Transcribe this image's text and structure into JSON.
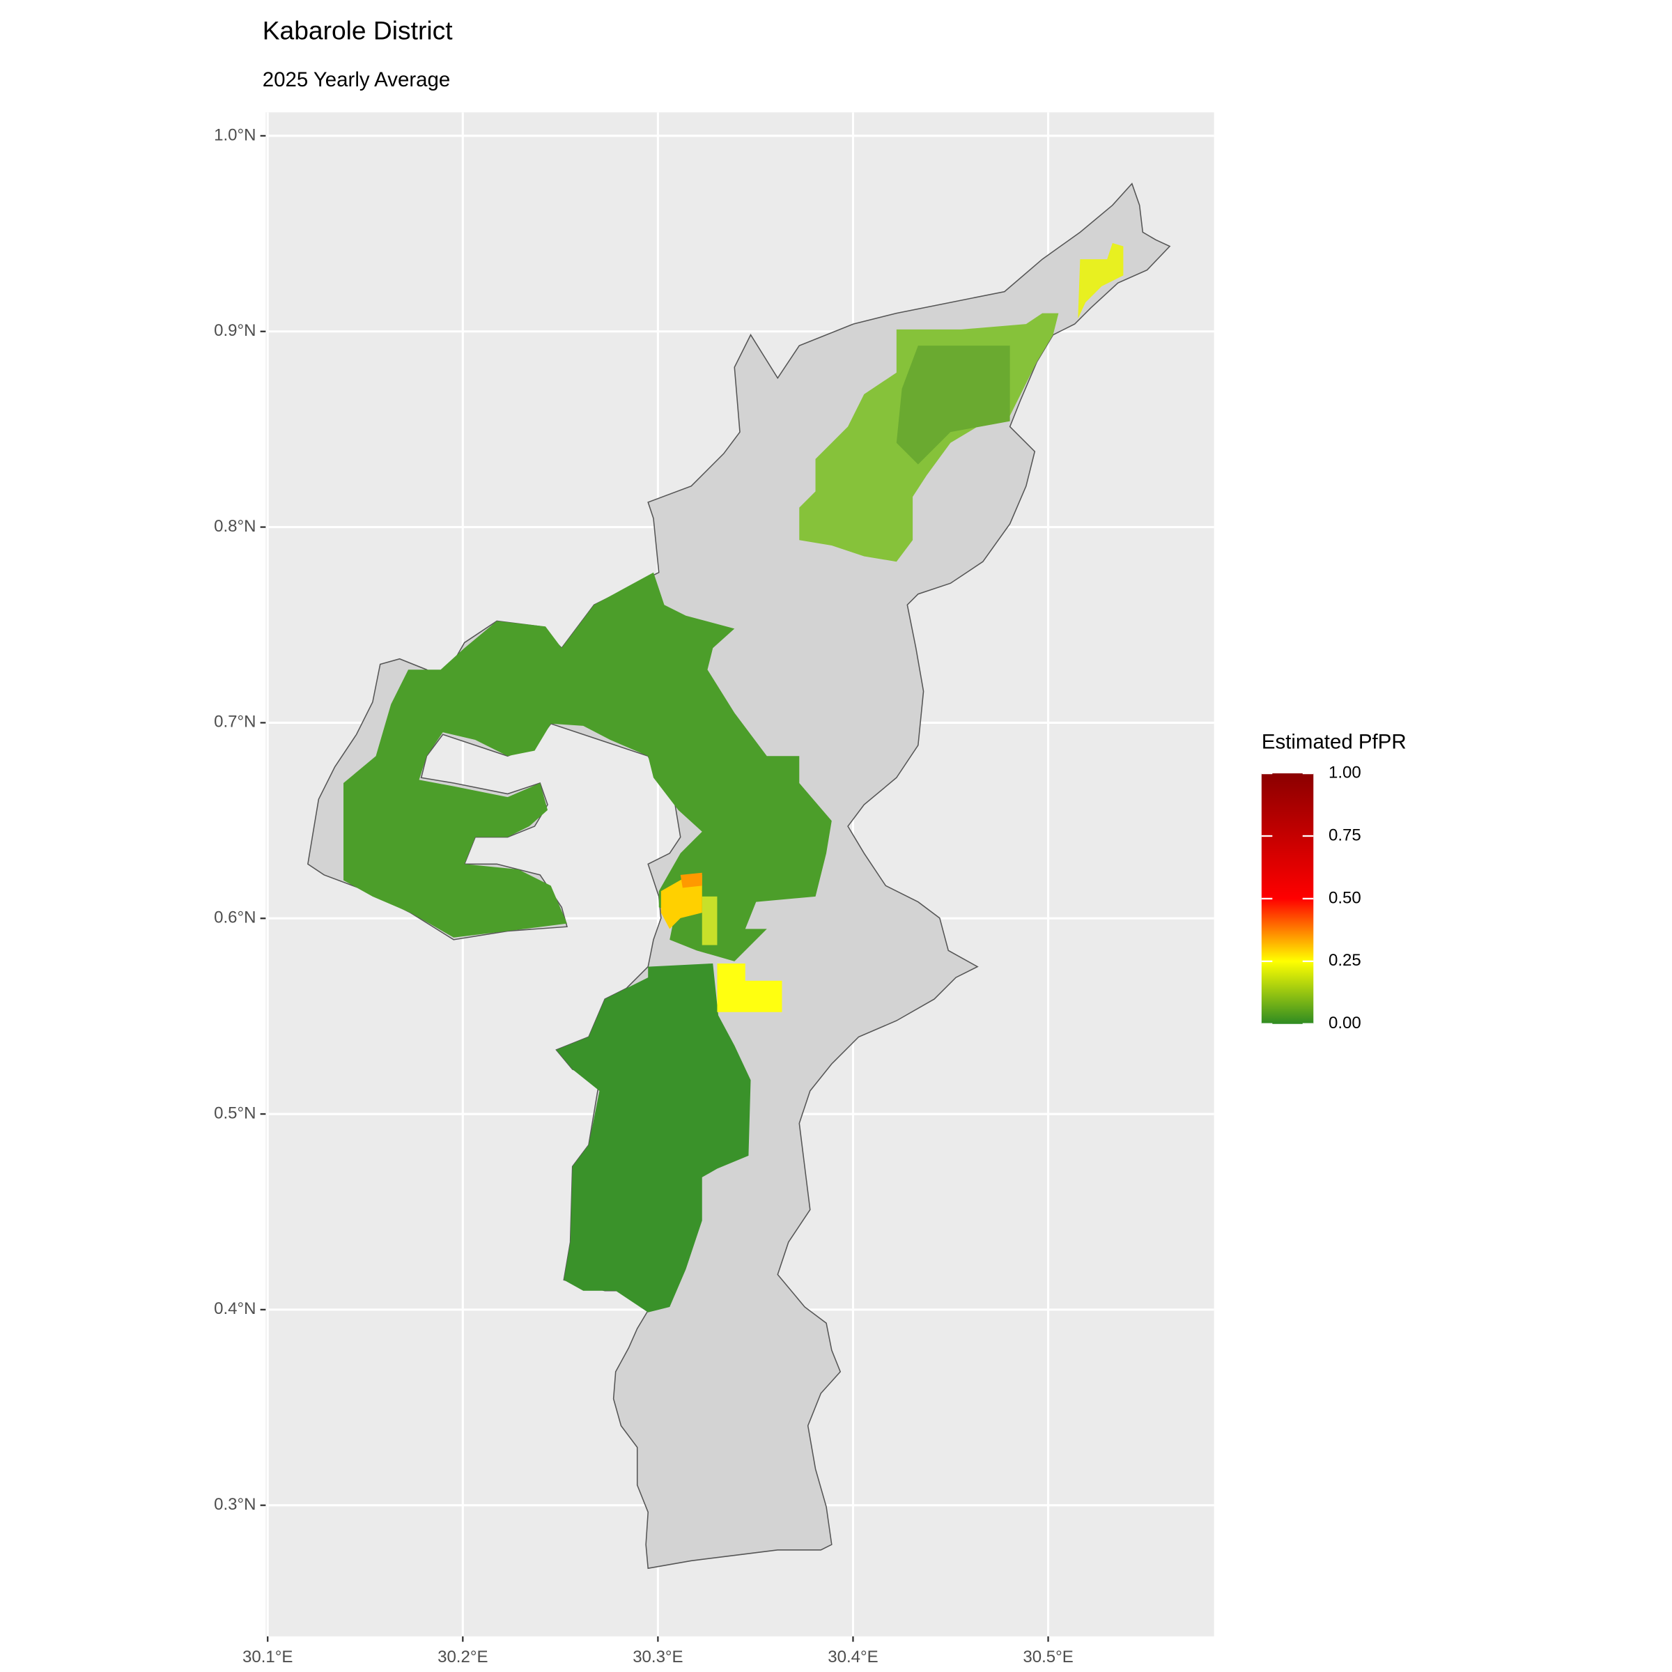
{
  "chart_data": {
    "type": "map",
    "title": "Kabarole District",
    "subtitle": "2025 Yearly Average",
    "xlim": [
      30.099,
      30.585
    ],
    "ylim": [
      0.233,
      1.012
    ],
    "xticks": [
      {
        "value": 30.1,
        "label": "30.1°E"
      },
      {
        "value": 30.2,
        "label": "30.2°E"
      },
      {
        "value": 30.3,
        "label": "30.3°E"
      },
      {
        "value": 30.4,
        "label": "30.4°E"
      },
      {
        "value": 30.5,
        "label": "30.5°E"
      }
    ],
    "yticks": [
      {
        "value": 0.3,
        "label": "0.3°N"
      },
      {
        "value": 0.4,
        "label": "0.4°N"
      },
      {
        "value": 0.5,
        "label": "0.5°N"
      },
      {
        "value": 0.6,
        "label": "0.6°N"
      },
      {
        "value": 0.7,
        "label": "0.7°N"
      },
      {
        "value": 0.8,
        "label": "0.8°N"
      },
      {
        "value": 0.9,
        "label": "0.9°N"
      },
      {
        "value": 1.0,
        "label": "1.0°N"
      }
    ],
    "grid": true,
    "legend_title": "Estimated PfPR",
    "legend_ticks": [
      {
        "value": 1.0,
        "label": "1.00"
      },
      0.75,
      {
        "value": 0.5,
        "label": "0.50"
      },
      0.25,
      {
        "value": 0,
        "label": "0.00"
      }
    ]
  }
}
